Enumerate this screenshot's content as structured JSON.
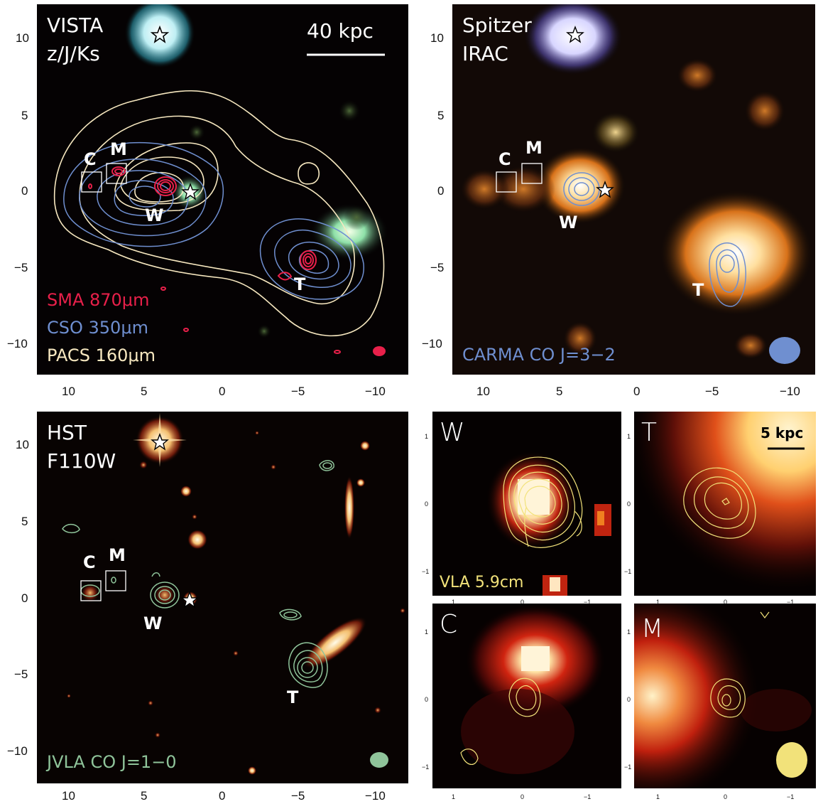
{
  "panels": {
    "vista": {
      "title_line1": "VISTA",
      "title_line2": "z/J/Ks",
      "scale_bar": "40 kpc",
      "legend": [
        {
          "text": "SMA 870μm",
          "color": "#e8204a"
        },
        {
          "text": "CSO 350μm",
          "color": "#6f8fd0"
        },
        {
          "text": "PACS 160μm",
          "color": "#f7e8c0"
        }
      ],
      "labels": {
        "C": "C",
        "M": "M",
        "W": "W",
        "T": "T"
      }
    },
    "spitzer": {
      "title_line1": "Spitzer",
      "title_line2": "IRAC",
      "legend": "CARMA CO J=3−2",
      "legend_color": "#6f8fd0",
      "labels": {
        "C": "C",
        "M": "M",
        "W": "W",
        "T": "T"
      }
    },
    "hst": {
      "title_line1": "HST",
      "title_line2": "F110W",
      "legend": "JVLA CO J=1−0",
      "legend_color": "#8fc49a",
      "labels": {
        "C": "C",
        "M": "M",
        "W": "W",
        "T": "T"
      }
    },
    "zoom_w": {
      "label": "W",
      "legend": "VLA 5.9cm",
      "legend_color": "#f2e27a"
    },
    "zoom_t": {
      "label": "T",
      "scale_bar": "5 kpc"
    },
    "zoom_c": {
      "label": "C"
    },
    "zoom_m": {
      "label": "M"
    }
  },
  "axes": {
    "large_y_ticks": [
      "10",
      "5",
      "0",
      "−5",
      "−10"
    ],
    "large_x_ticks": [
      "10",
      "5",
      "0",
      "−5",
      "−10"
    ],
    "small_y_ticks": [
      "1",
      "0",
      "−1"
    ],
    "small_x_ticks": [
      "1",
      "0",
      "−1"
    ]
  },
  "colors": {
    "background": "#050203",
    "sma": "#e8204a",
    "cso": "#6f8fd0",
    "pacs": "#f7e8c0",
    "carma": "#6f8fd0",
    "jvla": "#8fc49a",
    "vla": "#f2e27a"
  }
}
